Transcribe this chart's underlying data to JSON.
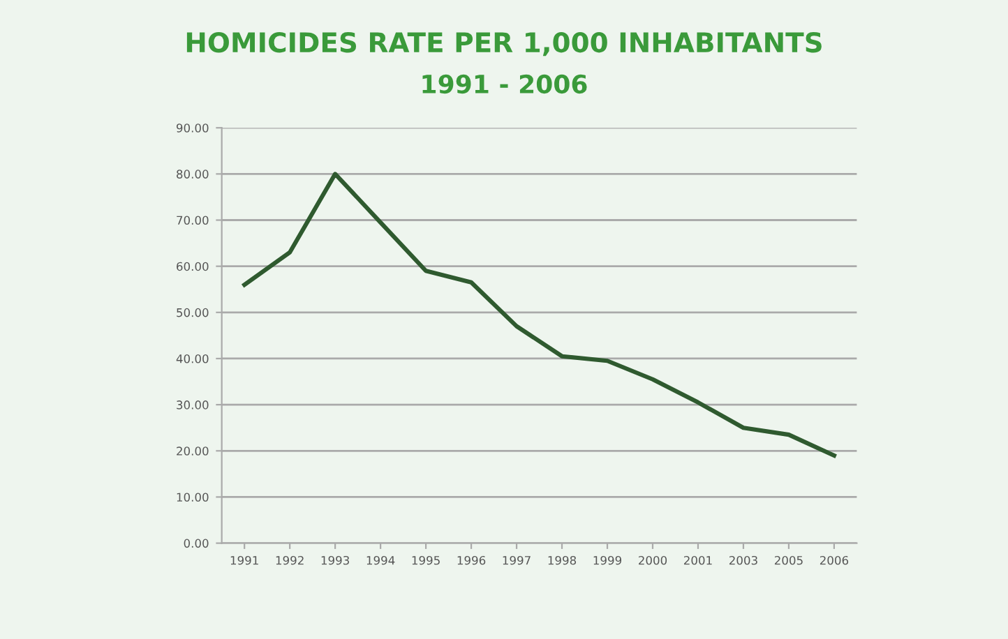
{
  "chart_data": {
    "type": "line",
    "title": "HOMICIDES RATE PER 1,000 INHABITANTS",
    "subtitle": "1991 - 2006",
    "categories": [
      "1991",
      "1992",
      "1993",
      "1994",
      "1995",
      "1996",
      "1997",
      "1998",
      "1999",
      "2000",
      "2001",
      "2003",
      "2005",
      "2006"
    ],
    "series": [
      {
        "color": "#2f5a2f",
        "values": [
          56,
          63,
          80,
          69.5,
          59,
          56.5,
          47,
          40.5,
          39.5,
          35.5,
          30.5,
          25,
          23.5,
          19
        ]
      }
    ],
    "ylim": [
      0,
      90
    ],
    "yticks": [
      {
        "value": 0,
        "label": "0.00"
      },
      {
        "value": 10,
        "label": "10.00"
      },
      {
        "value": 20,
        "label": "20.00"
      },
      {
        "value": 30,
        "label": "30.00"
      },
      {
        "value": 40,
        "label": "40.00"
      },
      {
        "value": 50,
        "label": "50.00"
      },
      {
        "value": 60,
        "label": "60.00"
      },
      {
        "value": 70,
        "label": "70.00"
      },
      {
        "value": 80,
        "label": "80.00"
      },
      {
        "value": 90,
        "label": "90.00"
      }
    ],
    "grid": "y",
    "marker": "none",
    "line_style": "solid"
  }
}
